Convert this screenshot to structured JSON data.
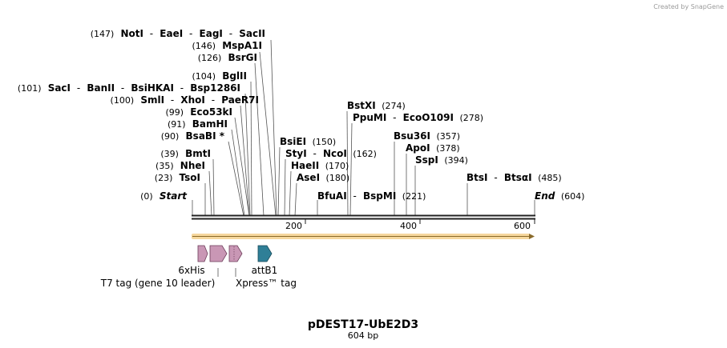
{
  "credit": "Created by SnapGene",
  "map": {
    "name": "pDEST17-UbE2D3",
    "length_label": "604 bp",
    "length": 604,
    "ticks": [
      "200",
      "400",
      "600"
    ]
  },
  "rows": [
    {
      "id": "r1",
      "parts": [
        {
          "t": "(147)",
          "c": "pos"
        },
        {
          "t": "NotI",
          "c": "b"
        },
        {
          "t": "-",
          "c": "lbl"
        },
        {
          "t": "EaeI",
          "c": "b"
        },
        {
          "t": "-",
          "c": "lbl"
        },
        {
          "t": "EagI",
          "c": "b"
        },
        {
          "t": "-",
          "c": "lbl"
        },
        {
          "t": "SacII",
          "c": "b"
        }
      ]
    },
    {
      "id": "r2",
      "parts": [
        {
          "t": "(146)",
          "c": "pos"
        },
        {
          "t": "MspA1I",
          "c": "b"
        }
      ]
    },
    {
      "id": "r3",
      "parts": [
        {
          "t": "(126)",
          "c": "pos"
        },
        {
          "t": "BsrGI",
          "c": "b"
        }
      ]
    },
    {
      "id": "r4",
      "parts": [
        {
          "t": "(104)",
          "c": "pos"
        },
        {
          "t": "BglII",
          "c": "b"
        }
      ]
    },
    {
      "id": "r5",
      "parts": [
        {
          "t": "(101)",
          "c": "pos"
        },
        {
          "t": "SacI",
          "c": "b"
        },
        {
          "t": "-",
          "c": "lbl"
        },
        {
          "t": "BanII",
          "c": "b"
        },
        {
          "t": "-",
          "c": "lbl"
        },
        {
          "t": "BsiHKAI",
          "c": "b"
        },
        {
          "t": "-",
          "c": "lbl"
        },
        {
          "t": "Bsp1286I",
          "c": "b"
        }
      ]
    },
    {
      "id": "r6",
      "parts": [
        {
          "t": "(100)",
          "c": "pos"
        },
        {
          "t": "SmlI",
          "c": "b"
        },
        {
          "t": "-",
          "c": "lbl"
        },
        {
          "t": "XhoI",
          "c": "b"
        },
        {
          "t": "-",
          "c": "lbl"
        },
        {
          "t": "PaeR7I",
          "c": "b"
        }
      ]
    },
    {
      "id": "r7",
      "parts": [
        {
          "t": "(99)",
          "c": "pos"
        },
        {
          "t": "Eco53kI",
          "c": "b"
        }
      ]
    },
    {
      "id": "r8",
      "parts": [
        {
          "t": "(91)",
          "c": "pos"
        },
        {
          "t": "BamHI",
          "c": "b"
        }
      ]
    },
    {
      "id": "r9",
      "parts": [
        {
          "t": "(90)",
          "c": "pos"
        },
        {
          "t": "BsaBI *",
          "c": "b"
        }
      ]
    },
    {
      "id": "r10",
      "parts": [
        {
          "t": "(39)",
          "c": "pos"
        },
        {
          "t": "BmtI",
          "c": "b"
        }
      ]
    },
    {
      "id": "r11",
      "parts": [
        {
          "t": "(35)",
          "c": "pos"
        },
        {
          "t": "NheI",
          "c": "b"
        }
      ]
    },
    {
      "id": "r12",
      "parts": [
        {
          "t": "(23)",
          "c": "pos"
        },
        {
          "t": "TsoI",
          "c": "b"
        }
      ]
    },
    {
      "id": "r13",
      "parts": [
        {
          "t": "(0)",
          "c": "pos"
        },
        {
          "t": "Start",
          "c": "bi"
        }
      ]
    },
    {
      "id": "r14",
      "parts": [
        {
          "t": "BsiEI",
          "c": "b"
        },
        {
          "t": "(150)",
          "c": "pos"
        }
      ]
    },
    {
      "id": "r15",
      "parts": [
        {
          "t": "StyI",
          "c": "b"
        },
        {
          "t": "-",
          "c": "lbl"
        },
        {
          "t": "NcoI",
          "c": "b"
        },
        {
          "t": "(162)",
          "c": "pos"
        }
      ]
    },
    {
      "id": "r16",
      "parts": [
        {
          "t": "HaeII",
          "c": "b"
        },
        {
          "t": "(170)",
          "c": "pos"
        }
      ]
    },
    {
      "id": "r17",
      "parts": [
        {
          "t": "AseI",
          "c": "b"
        },
        {
          "t": "(180)",
          "c": "pos"
        }
      ]
    },
    {
      "id": "r18",
      "parts": [
        {
          "t": "BfuAI",
          "c": "b"
        },
        {
          "t": "-",
          "c": "lbl"
        },
        {
          "t": "BspMI",
          "c": "b"
        },
        {
          "t": "(221)",
          "c": "pos"
        }
      ]
    },
    {
      "id": "r19",
      "parts": [
        {
          "t": "BstXI",
          "c": "b"
        },
        {
          "t": "(274)",
          "c": "pos"
        }
      ]
    },
    {
      "id": "r20",
      "parts": [
        {
          "t": "PpuMI",
          "c": "b"
        },
        {
          "t": "-",
          "c": "lbl"
        },
        {
          "t": "EcoO109I",
          "c": "b"
        },
        {
          "t": "(278)",
          "c": "pos"
        }
      ]
    },
    {
      "id": "r21",
      "parts": [
        {
          "t": "Bsu36I",
          "c": "b"
        },
        {
          "t": "(357)",
          "c": "pos"
        }
      ]
    },
    {
      "id": "r22",
      "parts": [
        {
          "t": "ApoI",
          "c": "b"
        },
        {
          "t": "(378)",
          "c": "pos"
        }
      ]
    },
    {
      "id": "r23",
      "parts": [
        {
          "t": "SspI",
          "c": "b"
        },
        {
          "t": "(394)",
          "c": "pos"
        }
      ]
    },
    {
      "id": "r24",
      "parts": [
        {
          "t": "BtsI",
          "c": "b"
        },
        {
          "t": "-",
          "c": "lbl"
        },
        {
          "t": "BtsαI",
          "c": "b"
        },
        {
          "t": "(485)",
          "c": "pos"
        }
      ]
    },
    {
      "id": "r25",
      "parts": [
        {
          "t": "End",
          "c": "bi"
        },
        {
          "t": "(604)",
          "c": "pos"
        }
      ]
    }
  ],
  "features": {
    "labels": [
      "6xHis",
      "T7 tag (gene 10 leader)",
      "attB1",
      "Xpress™ tag"
    ],
    "colors": {
      "tag": "#c997b5",
      "attB": "#2f7f97",
      "orf": "#f0b84a"
    }
  }
}
